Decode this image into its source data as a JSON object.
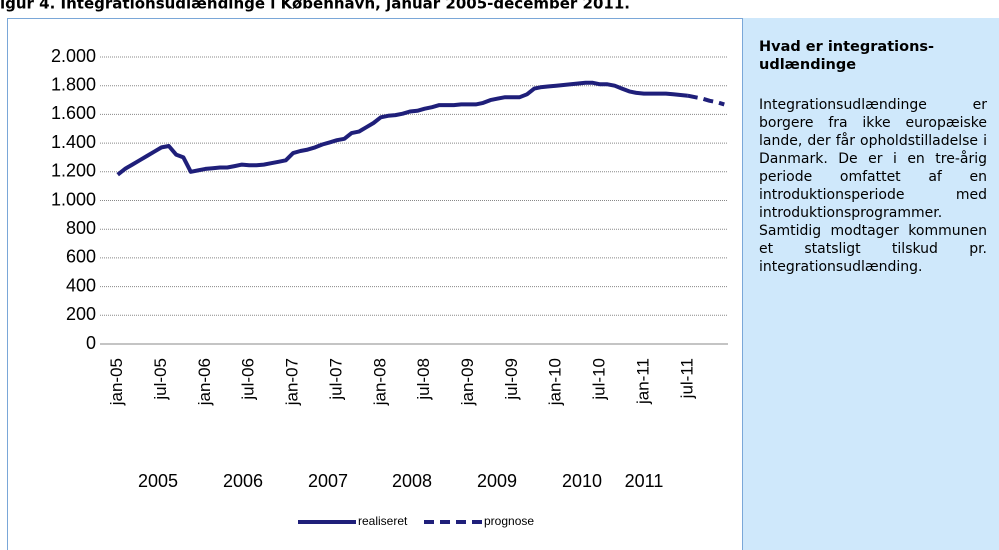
{
  "chart_data": {
    "type": "line",
    "title": "igur 4. Integrationsudlændinge i København, januar 2005-december 2011.",
    "categories": [
      "jan-05",
      null,
      null,
      null,
      null,
      null,
      "jul-05",
      null,
      null,
      null,
      null,
      null,
      "jan-06",
      null,
      null,
      null,
      null,
      null,
      "jul-06",
      null,
      null,
      null,
      null,
      null,
      "jan-07",
      null,
      null,
      null,
      null,
      null,
      "jul-07",
      null,
      null,
      null,
      null,
      null,
      "jan-08",
      null,
      null,
      null,
      null,
      null,
      "jul-08",
      null,
      null,
      null,
      null,
      null,
      "jan-09",
      null,
      null,
      null,
      null,
      null,
      "jul-09",
      null,
      null,
      null,
      null,
      null,
      "jan-10",
      null,
      null,
      null,
      null,
      null,
      "jul-10",
      null,
      null,
      null,
      null,
      null,
      "jan-11",
      null,
      null,
      null,
      null,
      null,
      "jul-11",
      null,
      null,
      null,
      null,
      null
    ],
    "year_labels": [
      "2005",
      "2006",
      "2007",
      "2008",
      "2009",
      "2010",
      "2011"
    ],
    "series": [
      {
        "name": "realiseret",
        "color": "#1f1f7a",
        "dashed": false,
        "values": [
          1180,
          1220,
          1250,
          1280,
          1310,
          1340,
          1370,
          1380,
          1320,
          1300,
          1200,
          1210,
          1220,
          1225,
          1230,
          1230,
          1240,
          1250,
          1245,
          1245,
          1250,
          1260,
          1270,
          1280,
          1330,
          1345,
          1355,
          1370,
          1390,
          1405,
          1420,
          1430,
          1470,
          1480,
          1510,
          1540,
          1580,
          1590,
          1595,
          1605,
          1620,
          1625,
          1640,
          1650,
          1665,
          1665,
          1665,
          1670,
          1670,
          1670,
          1680,
          1700,
          1710,
          1720,
          1720,
          1720,
          1740,
          1780,
          1790,
          1795,
          1800,
          1805,
          1810,
          1815,
          1820,
          1820,
          1810,
          1810,
          1800,
          1780,
          1760,
          1750,
          1745,
          1745,
          1745,
          1745,
          1740,
          1735,
          1730,
          null,
          null,
          null,
          null,
          null
        ]
      },
      {
        "name": "prognose",
        "color": "#1f1f7a",
        "dashed": true,
        "values": [
          null,
          null,
          null,
          null,
          null,
          null,
          null,
          null,
          null,
          null,
          null,
          null,
          null,
          null,
          null,
          null,
          null,
          null,
          null,
          null,
          null,
          null,
          null,
          null,
          null,
          null,
          null,
          null,
          null,
          null,
          null,
          null,
          null,
          null,
          null,
          null,
          null,
          null,
          null,
          null,
          null,
          null,
          null,
          null,
          null,
          null,
          null,
          null,
          null,
          null,
          null,
          null,
          null,
          null,
          null,
          null,
          null,
          null,
          null,
          null,
          null,
          null,
          null,
          null,
          null,
          null,
          null,
          null,
          null,
          null,
          null,
          null,
          null,
          null,
          null,
          null,
          null,
          null,
          1730,
          1720,
          1710,
          1695,
          1685,
          1670
        ]
      }
    ],
    "ylim": [
      0,
      2000
    ],
    "yticks": [
      0,
      200,
      400,
      600,
      800,
      {
        "value": 1000,
        "label": "1.000"
      },
      {
        "value": 1200,
        "label": "1.200"
      },
      {
        "value": 1400,
        "label": "1.400"
      },
      {
        "value": 1600,
        "label": "1.600"
      },
      {
        "value": 1800,
        "label": "1.800"
      },
      {
        "value": 2000,
        "label": "2.000"
      }
    ],
    "grid": true,
    "legend": "bottom"
  },
  "sidebar": {
    "heading": "Hvad er integrations-udlændinge",
    "text": "Integrationsudlændinge er borgere fra ikke europæiske lande, der får opholdstilladelse i Danmark. De er i en tre-årig periode omfattet af en introduktionsperiode med introduktionsprogrammer. Samtidig modtager kommunen et statsligt tilskud pr. integrationsudlænding."
  }
}
